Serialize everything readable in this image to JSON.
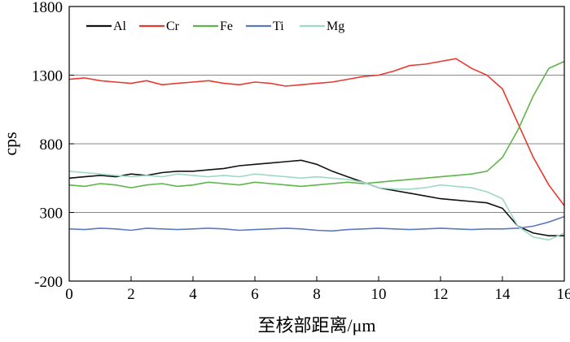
{
  "chart_data": {
    "type": "line",
    "title": "",
    "xlabel": "至核部距离/μm",
    "ylabel": "cps",
    "xlim": [
      0,
      16
    ],
    "ylim": [
      -200,
      1800
    ],
    "xticks": [
      0,
      2,
      4,
      6,
      8,
      10,
      12,
      14,
      16
    ],
    "yticks": [
      -200,
      300,
      800,
      1300,
      1800
    ],
    "grid": "horizontal",
    "legend_position": "top-left",
    "x": [
      0,
      0.5,
      1,
      1.5,
      2,
      2.5,
      3,
      3.5,
      4,
      4.5,
      5,
      5.5,
      6,
      6.5,
      7,
      7.5,
      8,
      8.5,
      9,
      9.5,
      10,
      10.5,
      11,
      11.5,
      12,
      12.5,
      13,
      13.5,
      14,
      14.5,
      15,
      15.5,
      16
    ],
    "series": [
      {
        "name": "Al",
        "color": "#111111",
        "values": [
          550,
          560,
          570,
          560,
          580,
          570,
          590,
          600,
          600,
          610,
          620,
          640,
          650,
          660,
          670,
          680,
          650,
          600,
          560,
          520,
          480,
          460,
          440,
          420,
          400,
          390,
          380,
          370,
          330,
          200,
          150,
          130,
          130
        ]
      },
      {
        "name": "Cr",
        "color": "#e8392f",
        "values": [
          1270,
          1280,
          1260,
          1250,
          1240,
          1260,
          1230,
          1240,
          1250,
          1260,
          1240,
          1230,
          1250,
          1240,
          1220,
          1230,
          1240,
          1250,
          1270,
          1290,
          1300,
          1330,
          1370,
          1380,
          1400,
          1420,
          1350,
          1300,
          1200,
          950,
          700,
          500,
          350
        ]
      },
      {
        "name": "Fe",
        "color": "#5db548",
        "values": [
          500,
          490,
          510,
          500,
          480,
          500,
          510,
          490,
          500,
          520,
          510,
          500,
          520,
          510,
          500,
          490,
          500,
          510,
          520,
          510,
          520,
          530,
          540,
          550,
          560,
          570,
          580,
          600,
          700,
          900,
          1150,
          1350,
          1400
        ]
      },
      {
        "name": "Ti",
        "color": "#5a78c4",
        "values": [
          180,
          175,
          185,
          180,
          170,
          185,
          180,
          175,
          180,
          185,
          180,
          170,
          175,
          180,
          185,
          180,
          170,
          165,
          175,
          180,
          185,
          180,
          175,
          180,
          185,
          180,
          175,
          180,
          180,
          185,
          200,
          230,
          270
        ]
      },
      {
        "name": "Mg",
        "color": "#9fd8c8",
        "values": [
          600,
          590,
          580,
          570,
          560,
          570,
          560,
          580,
          570,
          560,
          570,
          560,
          580,
          570,
          560,
          550,
          560,
          550,
          540,
          520,
          480,
          470,
          470,
          480,
          500,
          490,
          480,
          450,
          400,
          200,
          120,
          100,
          150
        ]
      }
    ]
  }
}
